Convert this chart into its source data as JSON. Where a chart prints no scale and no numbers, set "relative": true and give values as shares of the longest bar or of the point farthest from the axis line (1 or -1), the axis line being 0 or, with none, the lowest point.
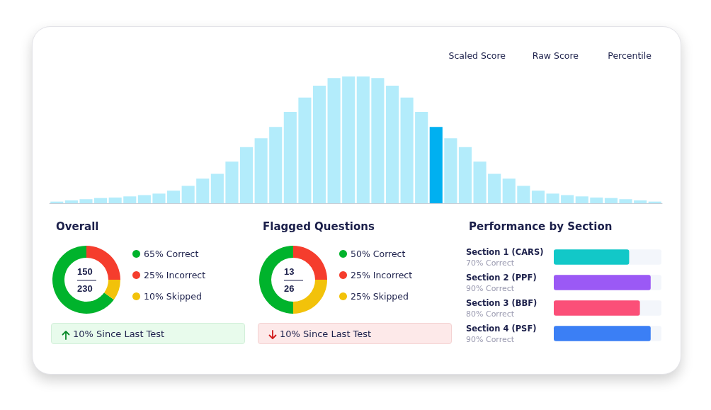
{
  "chart_data": [
    {
      "type": "bar",
      "relative": true,
      "annotations": [
        "Scaled Score",
        "Raw Score",
        "Percentile"
      ],
      "categories": [
        null,
        null,
        null,
        null,
        null,
        null,
        null,
        null,
        null,
        null,
        null,
        null,
        null,
        null,
        null,
        null,
        null,
        null,
        null,
        null,
        null,
        null,
        null,
        null,
        null,
        null,
        null,
        null,
        null,
        null,
        null,
        null,
        null,
        null,
        null,
        null,
        null,
        null,
        null,
        null,
        null,
        null
      ],
      "values": [
        0.013,
        0.022,
        0.032,
        0.041,
        0.045,
        0.054,
        0.064,
        0.076,
        0.099,
        0.137,
        0.194,
        0.232,
        0.328,
        0.443,
        0.513,
        0.602,
        0.72,
        0.834,
        0.927,
        0.987,
        1,
        1,
        0.987,
        0.927,
        0.834,
        0.72,
        0.602,
        0.513,
        0.443,
        0.328,
        0.232,
        0.194,
        0.137,
        0.099,
        0.076,
        0.064,
        0.054,
        0.045,
        0.041,
        0.032,
        0.022,
        0.013
      ],
      "colors": [
        "#b3ecfb",
        "#b3ecfb",
        "#b3ecfb",
        "#b3ecfb",
        "#b3ecfb",
        "#b3ecfb",
        "#b3ecfb",
        "#b3ecfb",
        "#b3ecfb",
        "#b3ecfb",
        "#b3ecfb",
        "#b3ecfb",
        "#b3ecfb",
        "#b3ecfb",
        "#b3ecfb",
        "#b3ecfb",
        "#b3ecfb",
        "#b3ecfb",
        "#b3ecfb",
        "#b3ecfb",
        "#b3ecfb",
        "#b3ecfb",
        "#b3ecfb",
        "#b3ecfb",
        "#b3ecfb",
        "#b3ecfb",
        "#00b0f0",
        "#b3ecfb",
        "#b3ecfb",
        "#b3ecfb",
        "#b3ecfb",
        "#b3ecfb",
        "#b3ecfb",
        "#b3ecfb",
        "#b3ecfb",
        "#b3ecfb",
        "#b3ecfb",
        "#b3ecfb",
        "#b3ecfb",
        "#b3ecfb",
        "#b3ecfb",
        "#b3ecfb"
      ]
    },
    {
      "type": "donut",
      "title": "Overall",
      "categories": [
        "Correct",
        "Incorrect",
        "Skipped"
      ],
      "values": [
        65,
        25,
        10
      ],
      "value_labels": [
        "65%",
        "25%",
        "10%"
      ],
      "colors": [
        "#00b32c",
        "#f53d2d",
        "#f2c20a"
      ],
      "legend": "right",
      "annotations": [
        "150",
        "230",
        "10% Since Last Test"
      ]
    },
    {
      "type": "donut",
      "title": "Flagged Questions",
      "categories": [
        "Correct",
        "Incorrect",
        "Skipped"
      ],
      "values": [
        50,
        25,
        25
      ],
      "value_labels": [
        "50%",
        "25%",
        "25%"
      ],
      "colors": [
        "#00b32c",
        "#f53d2d",
        "#f2c20a"
      ],
      "legend": "right",
      "annotations": [
        "13",
        "26",
        "10% Since Last Test"
      ]
    },
    {
      "type": "bar",
      "orientation": "horizontal",
      "title": "Performance by Section",
      "categories": [
        "Section 1 (CARS)",
        "Section 2 (PPF)",
        "Section 3 (BBF)",
        "Section 4 (PSF)"
      ],
      "values": [
        70,
        90,
        80,
        90
      ],
      "value_labels": [
        "70% Correct",
        "90% Correct",
        "80% Correct",
        "90% Correct"
      ],
      "colors": [
        "#12c8c8",
        "#9b59f5",
        "#fb4f78",
        "#3b7ff5"
      ],
      "tick_labels": "y"
    }
  ]
}
